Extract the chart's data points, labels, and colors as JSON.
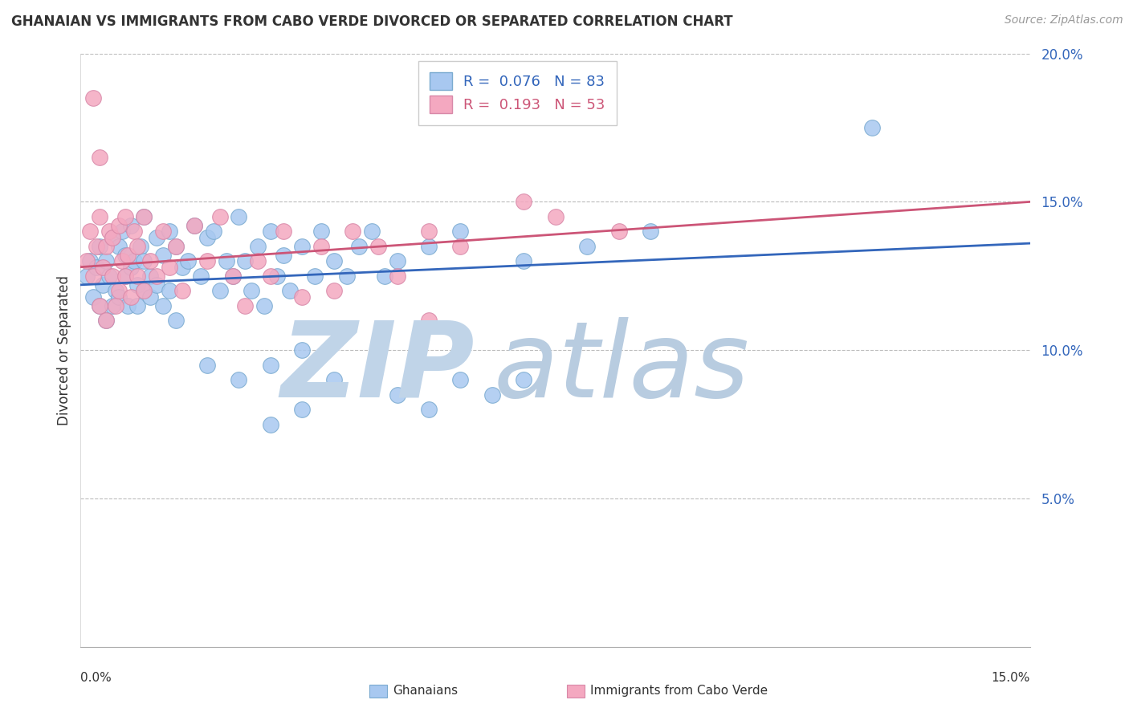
{
  "title": "GHANAIAN VS IMMIGRANTS FROM CABO VERDE DIVORCED OR SEPARATED CORRELATION CHART",
  "source_text": "Source: ZipAtlas.com",
  "ylabel": "Divorced or Separated",
  "xmin": 0.0,
  "xmax": 15.0,
  "ymin": 0.0,
  "ymax": 20.0,
  "yticks": [
    5.0,
    10.0,
    15.0,
    20.0
  ],
  "ytick_labels": [
    "5.0%",
    "10.0%",
    "15.0%",
    "20.0%"
  ],
  "ghanaian_color": "#a8c8f0",
  "caboverde_color": "#f4a8c0",
  "ghanaian_edge_color": "#7aaad0",
  "caboverde_edge_color": "#d888a8",
  "ghanaian_line_color": "#3366bb",
  "caboverde_line_color": "#cc5577",
  "watermark_zip_color": "#c0d4e8",
  "watermark_atlas_color": "#b8cce0",
  "background_color": "#ffffff",
  "R_ghana": 0.076,
  "N_ghana": 83,
  "R_cabo": 0.193,
  "N_cabo": 53,
  "gh_line_y0": 12.2,
  "gh_line_y1": 13.6,
  "cv_line_y0": 12.8,
  "cv_line_y1": 15.0,
  "ghanaian_scatter": [
    [
      0.1,
      12.5
    ],
    [
      0.15,
      13.0
    ],
    [
      0.2,
      11.8
    ],
    [
      0.25,
      12.8
    ],
    [
      0.3,
      13.5
    ],
    [
      0.3,
      11.5
    ],
    [
      0.35,
      12.2
    ],
    [
      0.4,
      13.0
    ],
    [
      0.4,
      11.0
    ],
    [
      0.45,
      12.5
    ],
    [
      0.5,
      13.8
    ],
    [
      0.5,
      11.5
    ],
    [
      0.55,
      12.0
    ],
    [
      0.6,
      13.5
    ],
    [
      0.6,
      11.8
    ],
    [
      0.65,
      14.0
    ],
    [
      0.7,
      12.5
    ],
    [
      0.7,
      13.2
    ],
    [
      0.75,
      11.5
    ],
    [
      0.8,
      14.2
    ],
    [
      0.8,
      12.8
    ],
    [
      0.85,
      13.0
    ],
    [
      0.9,
      12.2
    ],
    [
      0.9,
      11.5
    ],
    [
      0.95,
      13.5
    ],
    [
      1.0,
      14.5
    ],
    [
      1.0,
      12.0
    ],
    [
      1.0,
      13.0
    ],
    [
      1.1,
      12.5
    ],
    [
      1.1,
      11.8
    ],
    [
      1.2,
      13.8
    ],
    [
      1.2,
      12.2
    ],
    [
      1.3,
      11.5
    ],
    [
      1.3,
      13.2
    ],
    [
      1.4,
      14.0
    ],
    [
      1.4,
      12.0
    ],
    [
      1.5,
      13.5
    ],
    [
      1.5,
      11.0
    ],
    [
      1.6,
      12.8
    ],
    [
      1.7,
      13.0
    ],
    [
      1.8,
      14.2
    ],
    [
      1.9,
      12.5
    ],
    [
      2.0,
      13.8
    ],
    [
      2.1,
      14.0
    ],
    [
      2.2,
      12.0
    ],
    [
      2.3,
      13.0
    ],
    [
      2.4,
      12.5
    ],
    [
      2.5,
      14.5
    ],
    [
      2.6,
      13.0
    ],
    [
      2.7,
      12.0
    ],
    [
      2.8,
      13.5
    ],
    [
      2.9,
      11.5
    ],
    [
      3.0,
      14.0
    ],
    [
      3.1,
      12.5
    ],
    [
      3.2,
      13.2
    ],
    [
      3.3,
      12.0
    ],
    [
      3.5,
      13.5
    ],
    [
      3.7,
      12.5
    ],
    [
      3.8,
      14.0
    ],
    [
      4.0,
      13.0
    ],
    [
      4.2,
      12.5
    ],
    [
      4.4,
      13.5
    ],
    [
      4.6,
      14.0
    ],
    [
      4.8,
      12.5
    ],
    [
      5.0,
      13.0
    ],
    [
      5.5,
      13.5
    ],
    [
      6.0,
      14.0
    ],
    [
      7.0,
      13.0
    ],
    [
      8.0,
      13.5
    ],
    [
      9.0,
      14.0
    ],
    [
      2.0,
      9.5
    ],
    [
      2.5,
      9.0
    ],
    [
      3.0,
      9.5
    ],
    [
      3.5,
      10.0
    ],
    [
      4.0,
      9.0
    ],
    [
      5.0,
      8.5
    ],
    [
      5.5,
      8.0
    ],
    [
      6.0,
      9.0
    ],
    [
      6.5,
      8.5
    ],
    [
      7.0,
      9.0
    ],
    [
      3.0,
      7.5
    ],
    [
      3.5,
      8.0
    ],
    [
      12.5,
      17.5
    ]
  ],
  "caboverde_scatter": [
    [
      0.1,
      13.0
    ],
    [
      0.15,
      14.0
    ],
    [
      0.2,
      12.5
    ],
    [
      0.25,
      13.5
    ],
    [
      0.3,
      11.5
    ],
    [
      0.3,
      14.5
    ],
    [
      0.35,
      12.8
    ],
    [
      0.4,
      13.5
    ],
    [
      0.4,
      11.0
    ],
    [
      0.45,
      14.0
    ],
    [
      0.5,
      12.5
    ],
    [
      0.5,
      13.8
    ],
    [
      0.55,
      11.5
    ],
    [
      0.6,
      14.2
    ],
    [
      0.6,
      12.0
    ],
    [
      0.65,
      13.0
    ],
    [
      0.7,
      14.5
    ],
    [
      0.7,
      12.5
    ],
    [
      0.75,
      13.2
    ],
    [
      0.8,
      11.8
    ],
    [
      0.85,
      14.0
    ],
    [
      0.9,
      12.5
    ],
    [
      0.9,
      13.5
    ],
    [
      1.0,
      12.0
    ],
    [
      1.0,
      14.5
    ],
    [
      1.1,
      13.0
    ],
    [
      1.2,
      12.5
    ],
    [
      1.3,
      14.0
    ],
    [
      1.4,
      12.8
    ],
    [
      1.5,
      13.5
    ],
    [
      1.6,
      12.0
    ],
    [
      1.8,
      14.2
    ],
    [
      2.0,
      13.0
    ],
    [
      2.2,
      14.5
    ],
    [
      2.4,
      12.5
    ],
    [
      2.6,
      11.5
    ],
    [
      2.8,
      13.0
    ],
    [
      3.0,
      12.5
    ],
    [
      3.2,
      14.0
    ],
    [
      3.5,
      11.8
    ],
    [
      3.8,
      13.5
    ],
    [
      4.0,
      12.0
    ],
    [
      4.3,
      14.0
    ],
    [
      4.7,
      13.5
    ],
    [
      5.0,
      12.5
    ],
    [
      5.5,
      14.0
    ],
    [
      6.0,
      13.5
    ],
    [
      7.0,
      15.0
    ],
    [
      7.5,
      14.5
    ],
    [
      8.5,
      14.0
    ],
    [
      0.2,
      18.5
    ],
    [
      0.3,
      16.5
    ],
    [
      5.5,
      11.0
    ]
  ]
}
